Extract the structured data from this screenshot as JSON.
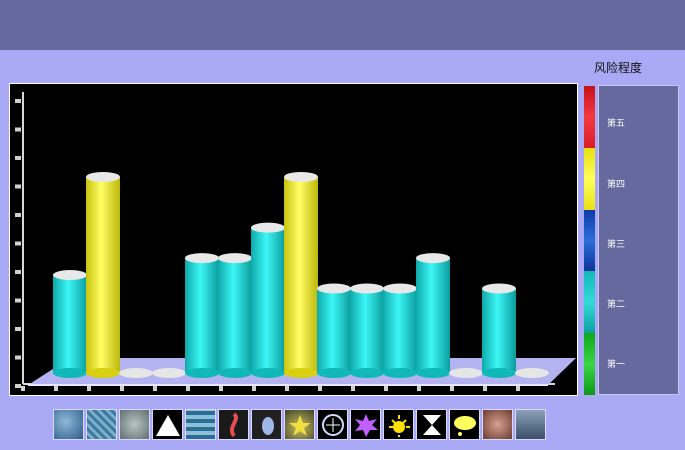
{
  "legend": {
    "title": "风险程度",
    "levels": [
      "第五",
      "第四",
      "第三",
      "第二",
      "第一"
    ],
    "level_colors": [
      "#dd1b25",
      "#f5f021",
      "#1349b7",
      "#16c5c0",
      "#12b51a"
    ]
  },
  "chart_data": {
    "type": "bar",
    "title": "",
    "xlabel": "",
    "ylabel": "",
    "values": [
      0.29,
      0.58,
      0,
      0,
      0.34,
      0.34,
      0.43,
      0.58,
      0.25,
      0.25,
      0.25,
      0.34,
      0,
      0.25,
      0
    ],
    "colors": [
      "cyan",
      "yellow",
      "empty",
      "empty",
      "cyan",
      "cyan",
      "cyan",
      "yellow",
      "cyan",
      "cyan",
      "cyan",
      "cyan",
      "empty",
      "cyan",
      "empty"
    ],
    "ylim": [
      0,
      1
    ],
    "grid": false,
    "legend": "right"
  },
  "toolbar": {
    "icons": [
      "molecule-blue-icon",
      "cells-blue-icon",
      "tissue-grey-icon",
      "triangle-icon",
      "helix-icon",
      "worm-icon",
      "bird-icon",
      "star-icon",
      "brain-icon",
      "splash-icon",
      "sun-icon",
      "hourglass-icon",
      "speech-bubble-icon",
      "coral-icon",
      "landscape-icon"
    ]
  },
  "colors": {
    "cyan_body": "#19d7d7",
    "yellow_body": "#f7f02c",
    "floor": "#b3b3f2",
    "frame": "#000000"
  }
}
